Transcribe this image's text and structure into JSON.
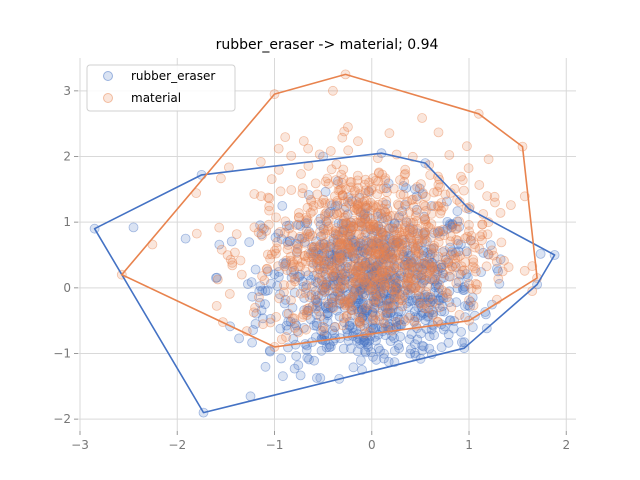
{
  "chart_data": {
    "type": "scatter",
    "title": "rubber_eraser -> material; 0.94",
    "xlabel": "",
    "ylabel": "",
    "xlim": [
      -3.0,
      2.1
    ],
    "ylim": [
      -2.15,
      3.5
    ],
    "xticks": [
      -3,
      -2,
      -1,
      0,
      1,
      2
    ],
    "yticks": [
      -2,
      -1,
      0,
      1,
      2,
      3
    ],
    "grid": true,
    "legend_position": "top-left",
    "series": [
      {
        "name": "rubber_eraser",
        "color": "#4472c4",
        "point_alpha": 0.2,
        "distribution": {
          "center": [
            0.0,
            0.0
          ],
          "spread": [
            0.55,
            0.65
          ],
          "count": 900
        },
        "extreme_points": [
          [
            -2.85,
            0.9
          ],
          [
            -2.45,
            0.92
          ],
          [
            -1.73,
            -1.9
          ],
          [
            -0.1,
            -1.25
          ],
          [
            0.95,
            -0.92
          ],
          [
            1.7,
            0.05
          ],
          [
            1.88,
            0.5
          ],
          [
            1.0,
            1.2
          ],
          [
            0.55,
            1.9
          ],
          [
            0.1,
            2.05
          ],
          [
            -0.5,
            2.0
          ],
          [
            -1.75,
            1.72
          ]
        ],
        "hull": [
          [
            -2.85,
            0.9
          ],
          [
            -1.73,
            -1.9
          ],
          [
            0.95,
            -0.92
          ],
          [
            1.7,
            0.05
          ],
          [
            1.88,
            0.5
          ],
          [
            1.0,
            1.2
          ],
          [
            0.55,
            1.9
          ],
          [
            0.1,
            2.05
          ],
          [
            -1.75,
            1.72
          ]
        ]
      },
      {
        "name": "material",
        "color": "#e8834e",
        "point_alpha": 0.2,
        "distribution": {
          "center": [
            0.0,
            0.55
          ],
          "spread": [
            0.6,
            0.7
          ],
          "count": 900
        },
        "extreme_points": [
          [
            -2.57,
            0.2
          ],
          [
            -1.0,
            2.95
          ],
          [
            -0.27,
            3.25
          ],
          [
            1.1,
            2.65
          ],
          [
            1.55,
            2.15
          ],
          [
            1.7,
            0.15
          ],
          [
            1.65,
            -0.05
          ],
          [
            1.0,
            -0.5
          ],
          [
            -1.0,
            -0.9
          ],
          [
            -0.4,
            3.0
          ],
          [
            1.2,
            1.0
          ]
        ],
        "hull": [
          [
            -2.57,
            0.2
          ],
          [
            -1.0,
            2.95
          ],
          [
            -0.27,
            3.25
          ],
          [
            1.1,
            2.65
          ],
          [
            1.55,
            2.15
          ],
          [
            1.7,
            0.15
          ],
          [
            1.0,
            -0.5
          ],
          [
            -1.0,
            -0.9
          ]
        ]
      }
    ]
  }
}
